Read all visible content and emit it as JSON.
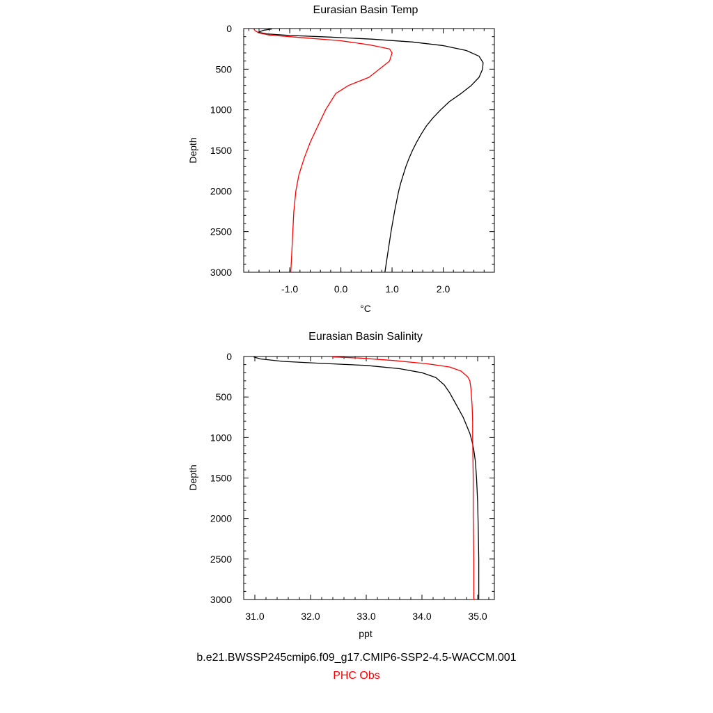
{
  "colors": {
    "model": "#000000",
    "obs": "#ff0000",
    "axis": "#000000"
  },
  "legend": {
    "model_label": "b.e21.BWSSP245cmip6.f09_g17.CMIP6-SSP2-4.5-WACCM.001",
    "obs_label": "PHC Obs"
  },
  "chart_data": [
    {
      "type": "line",
      "title": "Eurasian Basin Temp",
      "xlabel": "°C",
      "ylabel": "Depth",
      "xlim": [
        -1.9,
        3.0
      ],
      "ylim": [
        3000,
        0
      ],
      "y_inverted": true,
      "xticks": [
        -1.0,
        0.0,
        1.0,
        2.0
      ],
      "xtick_labels": [
        "-1.0",
        "0.0",
        "1.0",
        "2.0"
      ],
      "yticks": [
        0,
        500,
        1000,
        1500,
        2000,
        2500,
        3000
      ],
      "ytick_labels": [
        "0",
        "500",
        "1000",
        "1500",
        "2000",
        "2500",
        "3000"
      ],
      "grid": false,
      "series": [
        {
          "name": "b.e21.BWSSP245cmip6.f09_g17.CMIP6-SSP2-4.5-WACCM.001",
          "color": "#000000",
          "points": [
            [
              -1.35,
              5
            ],
            [
              -1.5,
              20
            ],
            [
              -1.62,
              45
            ],
            [
              -1.45,
              65
            ],
            [
              -1.0,
              85
            ],
            [
              -0.2,
              105
            ],
            [
              0.6,
              130
            ],
            [
              1.4,
              165
            ],
            [
              2.0,
              210
            ],
            [
              2.45,
              270
            ],
            [
              2.7,
              340
            ],
            [
              2.78,
              420
            ],
            [
              2.77,
              500
            ],
            [
              2.7,
              600
            ],
            [
              2.55,
              700
            ],
            [
              2.35,
              800
            ],
            [
              2.12,
              900
            ],
            [
              1.95,
              1000
            ],
            [
              1.8,
              1100
            ],
            [
              1.67,
              1200
            ],
            [
              1.57,
              1300
            ],
            [
              1.48,
              1400
            ],
            [
              1.4,
              1500
            ],
            [
              1.33,
              1600
            ],
            [
              1.27,
              1700
            ],
            [
              1.22,
              1800
            ],
            [
              1.17,
              1900
            ],
            [
              1.13,
              2000
            ],
            [
              1.05,
              2250
            ],
            [
              0.98,
              2500
            ],
            [
              0.92,
              2750
            ],
            [
              0.86,
              3000
            ]
          ]
        },
        {
          "name": "PHC Obs",
          "color": "#ff0000",
          "points": [
            [
              -1.7,
              5
            ],
            [
              -1.68,
              25
            ],
            [
              -1.6,
              55
            ],
            [
              -1.4,
              80
            ],
            [
              -0.8,
              110
            ],
            [
              0.0,
              150
            ],
            [
              0.55,
              200
            ],
            [
              0.95,
              250
            ],
            [
              1.0,
              300
            ],
            [
              0.95,
              400
            ],
            [
              0.55,
              600
            ],
            [
              0.15,
              700
            ],
            [
              -0.1,
              800
            ],
            [
              -0.2,
              900
            ],
            [
              -0.3,
              1000
            ],
            [
              -0.45,
              1200
            ],
            [
              -0.6,
              1400
            ],
            [
              -0.72,
              1600
            ],
            [
              -0.82,
              1800
            ],
            [
              -0.88,
              2000
            ],
            [
              -0.92,
              2250
            ],
            [
              -0.94,
              2500
            ],
            [
              -0.96,
              2750
            ],
            [
              -0.98,
              3000
            ]
          ]
        }
      ]
    },
    {
      "type": "line",
      "title": "Eurasian Basin Salinity",
      "xlabel": "ppt",
      "ylabel": "Depth",
      "xlim": [
        30.8,
        35.3
      ],
      "ylim": [
        3000,
        0
      ],
      "y_inverted": true,
      "xticks": [
        31.0,
        32.0,
        33.0,
        34.0,
        35.0
      ],
      "xtick_labels": [
        "31.0",
        "32.0",
        "33.0",
        "34.0",
        "35.0"
      ],
      "yticks": [
        0,
        500,
        1000,
        1500,
        2000,
        2500,
        3000
      ],
      "ytick_labels": [
        "0",
        "500",
        "1000",
        "1500",
        "2000",
        "2500",
        "3000"
      ],
      "grid": false,
      "series": [
        {
          "name": "b.e21.BWSSP245cmip6.f09_g17.CMIP6-SSP2-4.5-WACCM.001",
          "color": "#000000",
          "points": [
            [
              30.98,
              5
            ],
            [
              31.1,
              30
            ],
            [
              31.5,
              60
            ],
            [
              32.2,
              85
            ],
            [
              33.0,
              110
            ],
            [
              33.6,
              150
            ],
            [
              34.0,
              200
            ],
            [
              34.25,
              260
            ],
            [
              34.4,
              350
            ],
            [
              34.5,
              450
            ],
            [
              34.58,
              550
            ],
            [
              34.66,
              650
            ],
            [
              34.74,
              750
            ],
            [
              34.8,
              850
            ],
            [
              34.86,
              950
            ],
            [
              34.9,
              1050
            ],
            [
              34.93,
              1150
            ],
            [
              34.96,
              1300
            ],
            [
              34.98,
              1500
            ],
            [
              35.0,
              1800
            ],
            [
              35.01,
              2100
            ],
            [
              35.02,
              2500
            ],
            [
              35.02,
              3000
            ]
          ]
        },
        {
          "name": "PHC Obs",
          "color": "#ff0000",
          "points": [
            [
              32.4,
              5
            ],
            [
              32.9,
              20
            ],
            [
              33.5,
              50
            ],
            [
              34.1,
              90
            ],
            [
              34.5,
              130
            ],
            [
              34.7,
              180
            ],
            [
              34.82,
              250
            ],
            [
              34.86,
              300
            ],
            [
              34.88,
              400
            ],
            [
              34.9,
              600
            ],
            [
              34.91,
              800
            ],
            [
              34.91,
              1000
            ],
            [
              34.92,
              1500
            ],
            [
              34.92,
              2000
            ],
            [
              34.93,
              2500
            ],
            [
              34.93,
              3000
            ]
          ]
        }
      ]
    }
  ]
}
